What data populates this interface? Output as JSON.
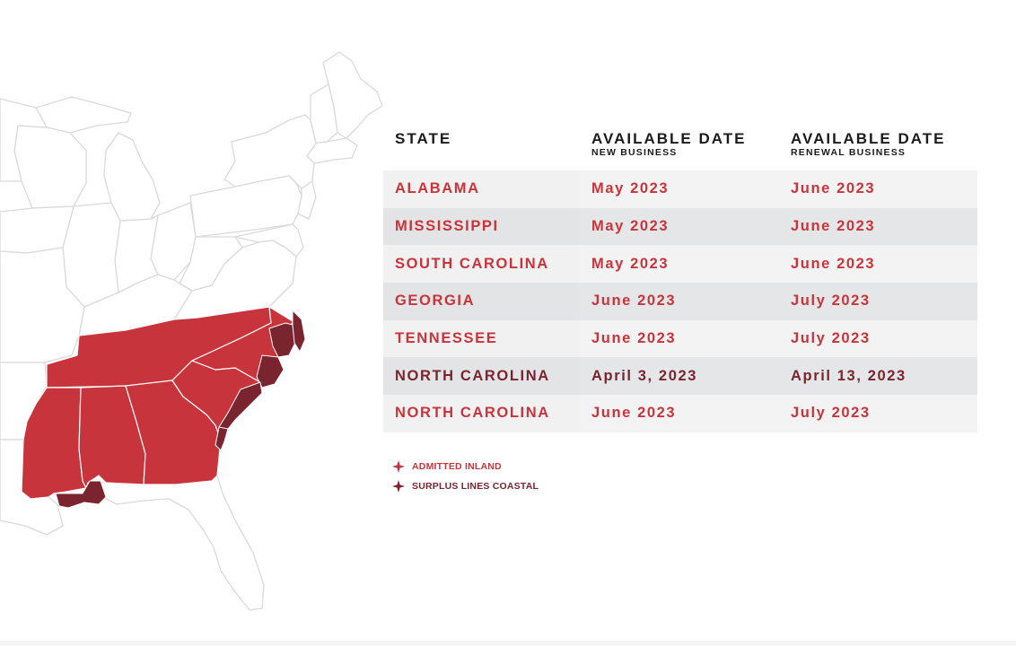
{
  "colors": {
    "inland": "#c8343c",
    "coastal": "#7a2430",
    "header_text": "#1b1b1b",
    "row_light": "#f0f1f0",
    "row_dark": "#e3e4e5",
    "map_outline": "#dcdcdc"
  },
  "table": {
    "headers": [
      {
        "main": "STATE",
        "sub": ""
      },
      {
        "main": "AVAILABLE DATE",
        "sub": "NEW BUSINESS"
      },
      {
        "main": "AVAILABLE DATE",
        "sub": "RENEWAL BUSINESS"
      }
    ],
    "rows": [
      {
        "state": "ALABAMA",
        "new_business": "May 2023",
        "renewal_business": "June 2023",
        "type": "inland"
      },
      {
        "state": "MISSISSIPPI",
        "new_business": "May 2023",
        "renewal_business": "June 2023",
        "type": "inland"
      },
      {
        "state": "SOUTH CAROLINA",
        "new_business": "May 2023",
        "renewal_business": "June 2023",
        "type": "inland"
      },
      {
        "state": "GEORGIA",
        "new_business": "June 2023",
        "renewal_business": "July 2023",
        "type": "inland"
      },
      {
        "state": "TENNESSEE",
        "new_business": "June 2023",
        "renewal_business": "July 2023",
        "type": "inland"
      },
      {
        "state": "NORTH CAROLINA",
        "new_business": "April 3, 2023",
        "renewal_business": "April 13, 2023",
        "type": "coastal"
      },
      {
        "state": "NORTH CAROLINA",
        "new_business": "June 2023",
        "renewal_business": "July 2023",
        "type": "inland"
      }
    ]
  },
  "legend": {
    "items": [
      {
        "label": "ADMITTED INLAND",
        "type": "inland",
        "icon": "four-point-star-icon"
      },
      {
        "label": "SURPLUS LINES COASTAL",
        "type": "coastal",
        "icon": "four-point-star-icon"
      }
    ]
  }
}
